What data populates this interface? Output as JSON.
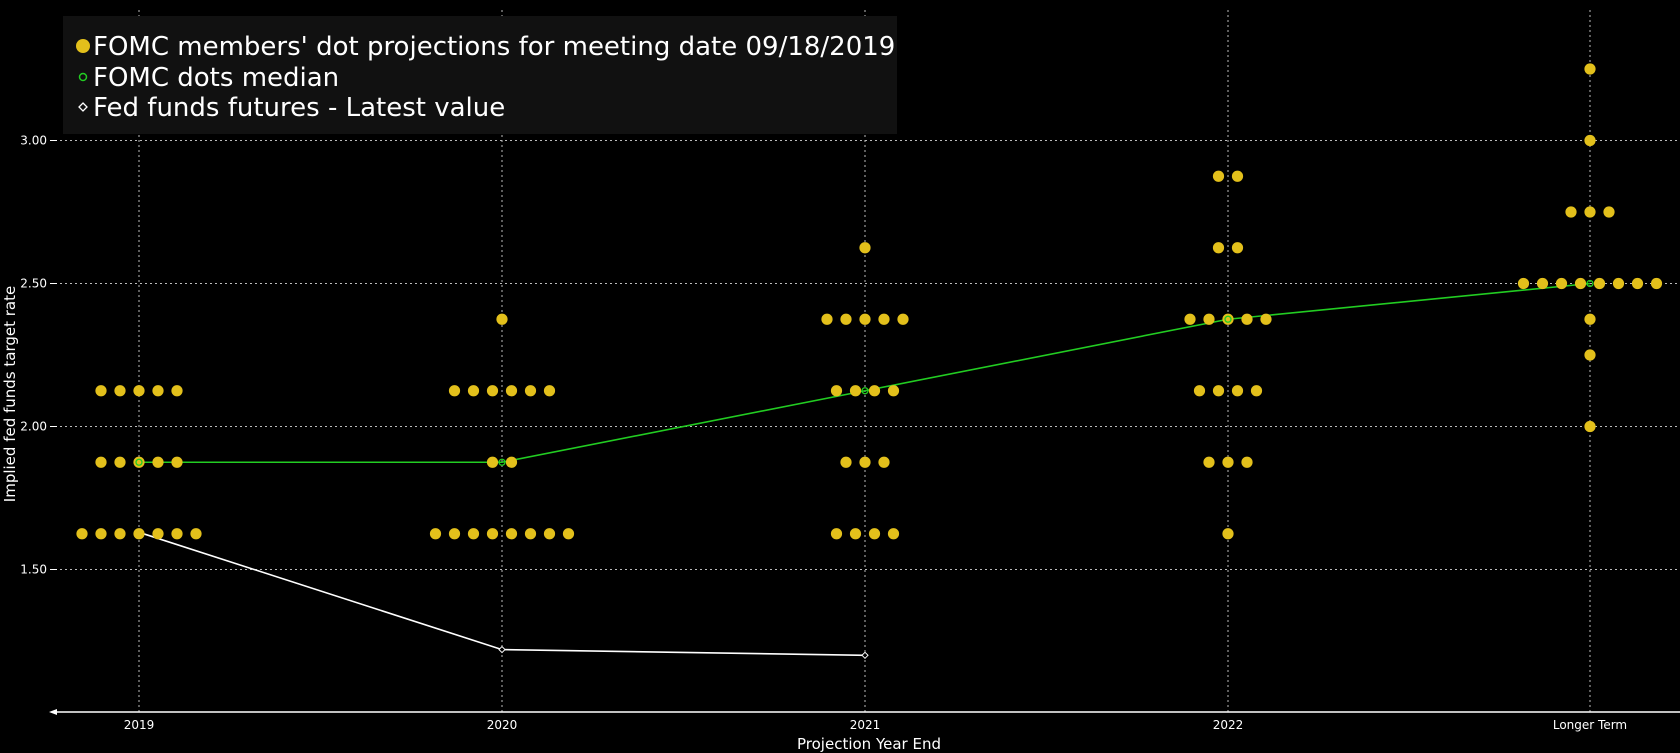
{
  "chart_data": {
    "type": "scatter",
    "xlabel": "Projection Year End",
    "ylabel": "Implied fed funds target rate",
    "categories": [
      "2019",
      "2020",
      "2021",
      "2022",
      "Longer Term"
    ],
    "ylim": [
      1.0,
      3.4
    ],
    "yticks": [
      1.5,
      2.0,
      2.5,
      3.0
    ],
    "ytick_labels": [
      "1.50",
      "2.00",
      "2.50",
      "3.00"
    ],
    "grid": true,
    "legend_position": "top-left",
    "colors": {
      "background": "#000000",
      "dots": "#e3c01b",
      "median": "#22cc22",
      "futures": "#ffffff",
      "grid": "#bbbbbb",
      "legend_bg": "#111111"
    },
    "series": [
      {
        "name": "FOMC members' dot projections for meeting date 09/18/2019",
        "marker": "dot",
        "points": [
          {
            "category": "2019",
            "values": [
              1.625,
              1.625,
              1.625,
              1.625,
              1.625,
              1.625,
              1.625,
              1.875,
              1.875,
              1.875,
              1.875,
              1.875,
              2.125,
              2.125,
              2.125,
              2.125,
              2.125
            ]
          },
          {
            "category": "2020",
            "values": [
              1.625,
              1.625,
              1.625,
              1.625,
              1.625,
              1.625,
              1.625,
              1.625,
              1.875,
              1.875,
              2.125,
              2.125,
              2.125,
              2.125,
              2.125,
              2.125,
              2.375
            ]
          },
          {
            "category": "2021",
            "values": [
              1.625,
              1.625,
              1.625,
              1.625,
              1.875,
              1.875,
              1.875,
              2.125,
              2.125,
              2.125,
              2.125,
              2.375,
              2.375,
              2.375,
              2.375,
              2.375,
              2.625
            ]
          },
          {
            "category": "2022",
            "values": [
              1.625,
              1.875,
              1.875,
              1.875,
              2.125,
              2.125,
              2.125,
              2.125,
              2.375,
              2.375,
              2.375,
              2.375,
              2.375,
              2.625,
              2.625,
              2.875,
              2.875
            ]
          },
          {
            "category": "Longer Term",
            "values": [
              2.0,
              2.25,
              2.375,
              2.5,
              2.5,
              2.5,
              2.5,
              2.5,
              2.5,
              2.5,
              2.5,
              2.75,
              2.75,
              2.75,
              3.0,
              3.25
            ]
          }
        ]
      },
      {
        "name": "FOMC dots median",
        "marker": "line",
        "x": [
          "2019",
          "2020",
          "2021",
          "2022",
          "Longer Term"
        ],
        "values": [
          1.875,
          1.875,
          2.125,
          2.375,
          2.5
        ]
      },
      {
        "name": "Fed funds futures - Latest value",
        "marker": "line",
        "x": [
          "2019",
          "2020",
          "2021"
        ],
        "values": [
          1.63,
          1.22,
          1.2
        ]
      }
    ]
  }
}
